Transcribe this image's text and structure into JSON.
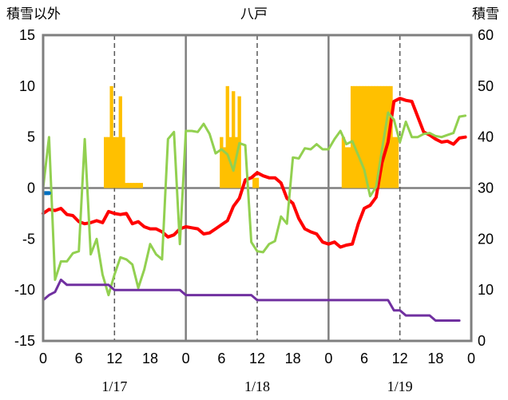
{
  "chart_data": {
    "type": "combo",
    "title": "八戸",
    "left_axis_title": "積雪以外",
    "right_axis_title": "積雪",
    "left_axis": {
      "range": [
        -15,
        15
      ],
      "ticks": [
        "15",
        "10",
        "5",
        "0",
        "-5",
        "-10",
        "-15"
      ]
    },
    "right_axis": {
      "range": [
        0,
        60
      ],
      "ticks": [
        "60",
        "50",
        "40",
        "30",
        "20",
        "10",
        "0"
      ]
    },
    "x_axis": {
      "hour_range": [
        0,
        72
      ],
      "hour_ticks": [
        "0",
        "6",
        "12",
        "18",
        "0",
        "6",
        "12",
        "18",
        "0",
        "6",
        "12",
        "18",
        "0"
      ],
      "dates": [
        "1/17",
        "1/18",
        "1/19"
      ]
    },
    "series": [
      {
        "kind": "bar",
        "axis": "right",
        "color": "#FFC000",
        "x": [
          10.5,
          11,
          11.5,
          12,
          12.5,
          13,
          13.5,
          14,
          14.5,
          15,
          15.5,
          16,
          16.5,
          30,
          30.5,
          31,
          31.5,
          32,
          32.5,
          33,
          33.5,
          34,
          34.5,
          35.5,
          36,
          50.5,
          51,
          51.5,
          52,
          52.5,
          53,
          53.5,
          54,
          54.5,
          55,
          55.5,
          56,
          56.5,
          57,
          57.5,
          58,
          58.5,
          59,
          59.5
        ],
        "values": [
          40,
          40,
          50,
          40,
          40,
          48,
          40,
          31,
          31,
          31,
          31,
          31,
          31,
          40,
          38,
          50,
          40,
          49,
          40,
          48,
          30,
          30,
          30,
          32,
          32,
          40,
          38,
          38,
          50,
          50,
          50,
          50,
          50,
          50,
          50,
          50,
          50,
          50,
          50,
          50,
          50,
          50,
          40,
          40
        ]
      },
      {
        "kind": "line",
        "axis": "left",
        "color": "#FF0000",
        "x": [
          0,
          1,
          2,
          3,
          4,
          5,
          6,
          7,
          8,
          9,
          10,
          11,
          12,
          13,
          14,
          15,
          16,
          17,
          18,
          19,
          20,
          21,
          22,
          23,
          24,
          25,
          26,
          27,
          28,
          29,
          30,
          31,
          32,
          33,
          34,
          35,
          36,
          37,
          38,
          39,
          40,
          41,
          42,
          43,
          44,
          45,
          46,
          47,
          48,
          49,
          50,
          51,
          52,
          53,
          54,
          55,
          56,
          57,
          58,
          59,
          60,
          61,
          62,
          63,
          64,
          65,
          66,
          67,
          68,
          69,
          70,
          71
        ],
        "values": [
          -2.5,
          -2.1,
          -2.2,
          -2.0,
          -2.6,
          -2.7,
          -3.3,
          -3.5,
          -3.4,
          -3.2,
          -3.4,
          -2.3,
          -2.5,
          -2.6,
          -2.5,
          -3.5,
          -3.3,
          -3.8,
          -4.0,
          -4.0,
          -4.3,
          -4.8,
          -4.6,
          -4.0,
          -3.8,
          -3.9,
          -4.0,
          -4.5,
          -4.4,
          -4.0,
          -3.6,
          -3.2,
          -1.8,
          -1.0,
          0.8,
          1.0,
          1.5,
          1.2,
          1.0,
          1.0,
          0.5,
          -1.0,
          -1.5,
          -3.0,
          -4.0,
          -4.3,
          -4.5,
          -5.3,
          -5.5,
          -5.3,
          -5.8,
          -5.6,
          -5.5,
          -3.5,
          -2.0,
          -1.7,
          -0.9,
          2.5,
          4.5,
          8.5,
          8.8,
          8.6,
          8.5,
          7.0,
          5.5,
          5.2,
          4.8,
          4.5,
          4.6,
          4.3,
          4.9,
          5.0
        ]
      },
      {
        "kind": "line",
        "axis": "left",
        "color": "#92D050",
        "x": [
          0,
          1,
          2,
          3,
          4,
          5,
          6,
          7,
          8,
          9,
          10,
          11,
          12,
          13,
          14,
          15,
          16,
          17,
          18,
          19,
          20,
          21,
          22,
          23,
          24,
          25,
          26,
          27,
          28,
          29,
          30,
          31,
          32,
          33,
          34,
          35,
          36,
          37,
          38,
          39,
          40,
          41,
          42,
          43,
          44,
          45,
          46,
          47,
          48,
          49,
          50,
          51,
          52,
          53,
          54,
          55,
          56,
          57,
          58,
          59,
          60,
          61,
          62,
          63,
          64,
          65,
          66,
          67,
          68,
          69,
          70,
          71
        ],
        "values": [
          0,
          5,
          -9,
          -7.2,
          -7.2,
          -6.4,
          -6.2,
          4.8,
          -6.5,
          -5.0,
          -8.5,
          -10.5,
          -8.5,
          -6.8,
          -7.0,
          -7.5,
          -9.8,
          -8.0,
          -5.5,
          -6.5,
          -7.0,
          4.8,
          5.5,
          -5.5,
          5.6,
          5.6,
          5.5,
          6.3,
          5.3,
          3.4,
          3.8,
          3.3,
          1.7,
          4.4,
          4.2,
          -5.3,
          -6.2,
          -6.3,
          -5.5,
          -5.2,
          -2.8,
          -3.5,
          3.0,
          2.9,
          3.9,
          3.8,
          4.3,
          3.8,
          3.8,
          4.8,
          5.6,
          4.3,
          4.6,
          3.2,
          1.8,
          -0.8,
          0.1,
          3.8,
          7.4,
          6.7,
          4.5,
          6.5,
          5.0,
          5.0,
          5.3,
          5.4,
          5.1,
          5.0,
          5.2,
          5.4,
          7.0,
          7.1
        ]
      },
      {
        "kind": "line",
        "axis": "left",
        "color": "#7030A0",
        "x": [
          0,
          1,
          2,
          3,
          4,
          5,
          6,
          7,
          8,
          9,
          10,
          11,
          12,
          13,
          14,
          15,
          16,
          17,
          18,
          19,
          20,
          21,
          22,
          23,
          24,
          25,
          26,
          27,
          28,
          29,
          30,
          31,
          32,
          33,
          34,
          35,
          36,
          37,
          38,
          39,
          40,
          41,
          42,
          43,
          44,
          45,
          46,
          47,
          48,
          49,
          50,
          51,
          52,
          53,
          54,
          55,
          56,
          57,
          58,
          59,
          60,
          61,
          62,
          63,
          64,
          65,
          66,
          67,
          68,
          69,
          70
        ],
        "values": [
          -11,
          -10.5,
          -10.2,
          -9,
          -9.5,
          -9.5,
          -9.5,
          -9.5,
          -9.5,
          -9.5,
          -9.5,
          -9.5,
          -10,
          -10,
          -10,
          -10,
          -10,
          -10,
          -10,
          -10,
          -10,
          -10,
          -10,
          -10,
          -10.5,
          -10.5,
          -10.5,
          -10.5,
          -10.5,
          -10.5,
          -10.5,
          -10.5,
          -10.5,
          -10.5,
          -10.5,
          -10.5,
          -11,
          -11,
          -11,
          -11,
          -11,
          -11,
          -11,
          -11,
          -11,
          -11,
          -11,
          -11,
          -11,
          -11,
          -11,
          -11,
          -11,
          -11,
          -11,
          -11,
          -11,
          -11,
          -11,
          -12,
          -12,
          -12.5,
          -12.5,
          -12.5,
          -12.5,
          -12.5,
          -13,
          -13,
          -13,
          -13,
          -13
        ]
      },
      {
        "kind": "line",
        "axis": "left",
        "color": "#0070C0",
        "x": [
          0.3,
          1.0
        ],
        "values": [
          -0.5,
          -0.5
        ]
      }
    ]
  }
}
